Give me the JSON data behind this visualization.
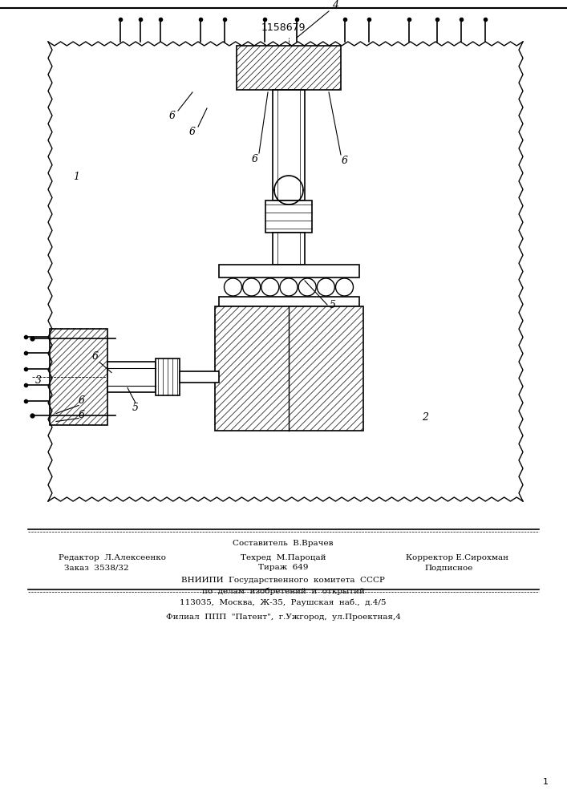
{
  "title": "1158679",
  "bg_color": "#ffffff",
  "line_color": "#000000",
  "footer": {
    "line1": {
      "left": "Редактор  Л.Алексеенко",
      "center": "Составитель  В.Врачев",
      "right": "Корректор Е.Сирохман"
    },
    "line2": {
      "left": "Техред  М.Пароцай"
    },
    "line3_left": "Заказ  3538/32",
    "line3_mid": "Тираж  649",
    "line3_right": "Подписное",
    "line4": "ВНИИПИ  Государственного  комитета  СССР",
    "line5": "по  делам  изобретений  и  открытий",
    "line6": "113035,  Москва,  Ж-35,  Раушская  наб.,  д.4/5",
    "line7": "Филиал  ППП  \"Патент\",  г.Ужгород,  ул.Проектная,4"
  }
}
